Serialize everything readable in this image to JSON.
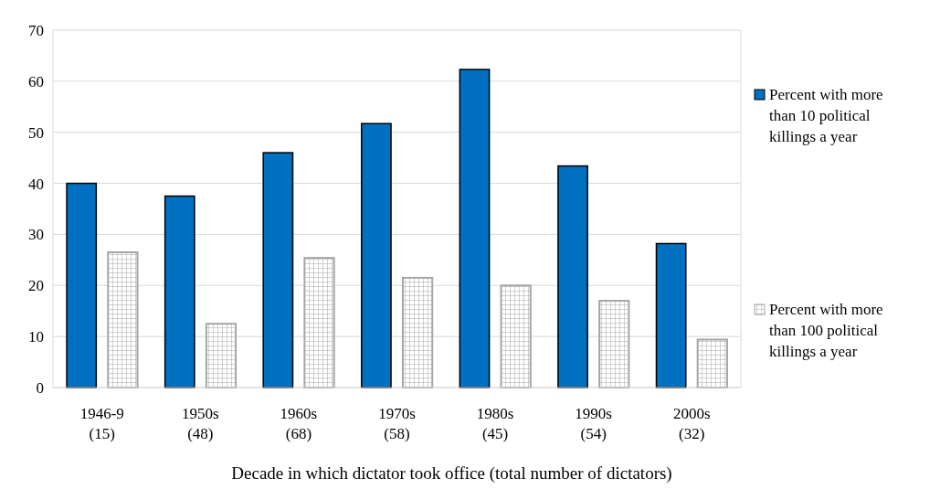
{
  "chart_data": {
    "type": "bar",
    "xlabel": "Decade in which dictator took office (total number of dictators)",
    "categories": [
      "1946-9\n(15)",
      "1950s\n(48)",
      "1960s\n(68)",
      "1970s\n(58)",
      "1980s\n(45)",
      "1990s\n(54)",
      "2000s\n(32)"
    ],
    "series": [
      {
        "name": "Percent with more than 10 political killings a year",
        "color": "#0070c0",
        "values": [
          40,
          37.5,
          46,
          51.7,
          62.3,
          43.4,
          28.2
        ]
      },
      {
        "name": "Percent with more than 100 political killings a year",
        "color": "#a6a6a6",
        "values": [
          26.5,
          12.5,
          25.4,
          21.5,
          20,
          17,
          9.4
        ]
      }
    ],
    "ylim": [
      0,
      70
    ],
    "yticks": [
      0,
      10,
      20,
      30,
      40,
      50,
      60,
      70
    ],
    "grid": "y",
    "legend": "right"
  }
}
